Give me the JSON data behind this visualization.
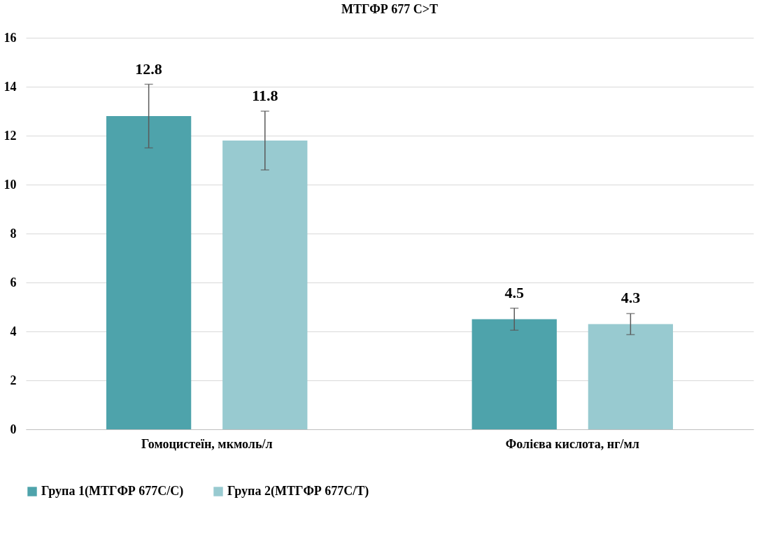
{
  "chart_data": {
    "type": "bar",
    "title": "МТГФР 677 C>T",
    "categories": [
      "Гомоцистеїн, мкмоль/л",
      "Фолієва кислота, нг/мл"
    ],
    "series": [
      {
        "name": "Група 1(МТГФР 677С/С)",
        "color": "#4ea3ab",
        "values": [
          12.8,
          4.5
        ],
        "errors": [
          1.3,
          0.45
        ]
      },
      {
        "name": "Група 2(МТГФР 677С/Т)",
        "color": "#98cad0",
        "values": [
          11.8,
          4.3
        ],
        "errors": [
          1.2,
          0.43
        ]
      }
    ],
    "ylim": [
      0,
      16
    ],
    "yticks": [
      0,
      2,
      4,
      6,
      8,
      10,
      12,
      14,
      16
    ],
    "grid": "y",
    "legend": "bottom",
    "data_labels": true
  }
}
